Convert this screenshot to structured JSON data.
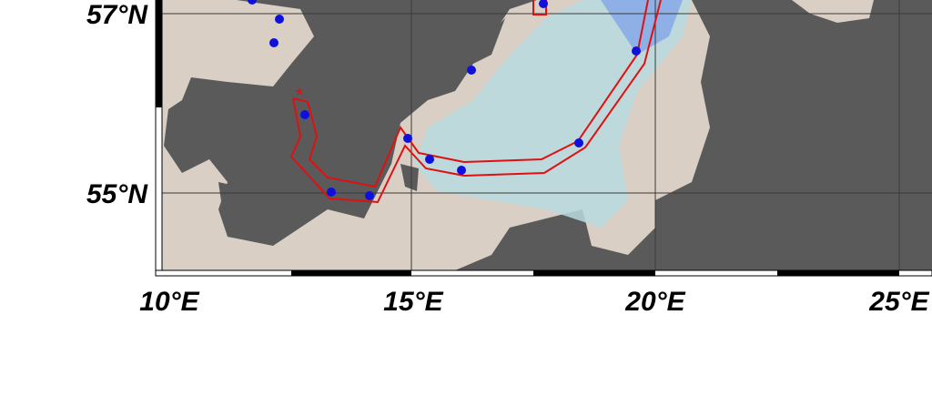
{
  "map": {
    "lat_labels": [
      "57°N",
      "55°N"
    ],
    "lon_labels": [
      "10°E",
      "15°E",
      "20°E",
      "25°E"
    ]
  }
}
